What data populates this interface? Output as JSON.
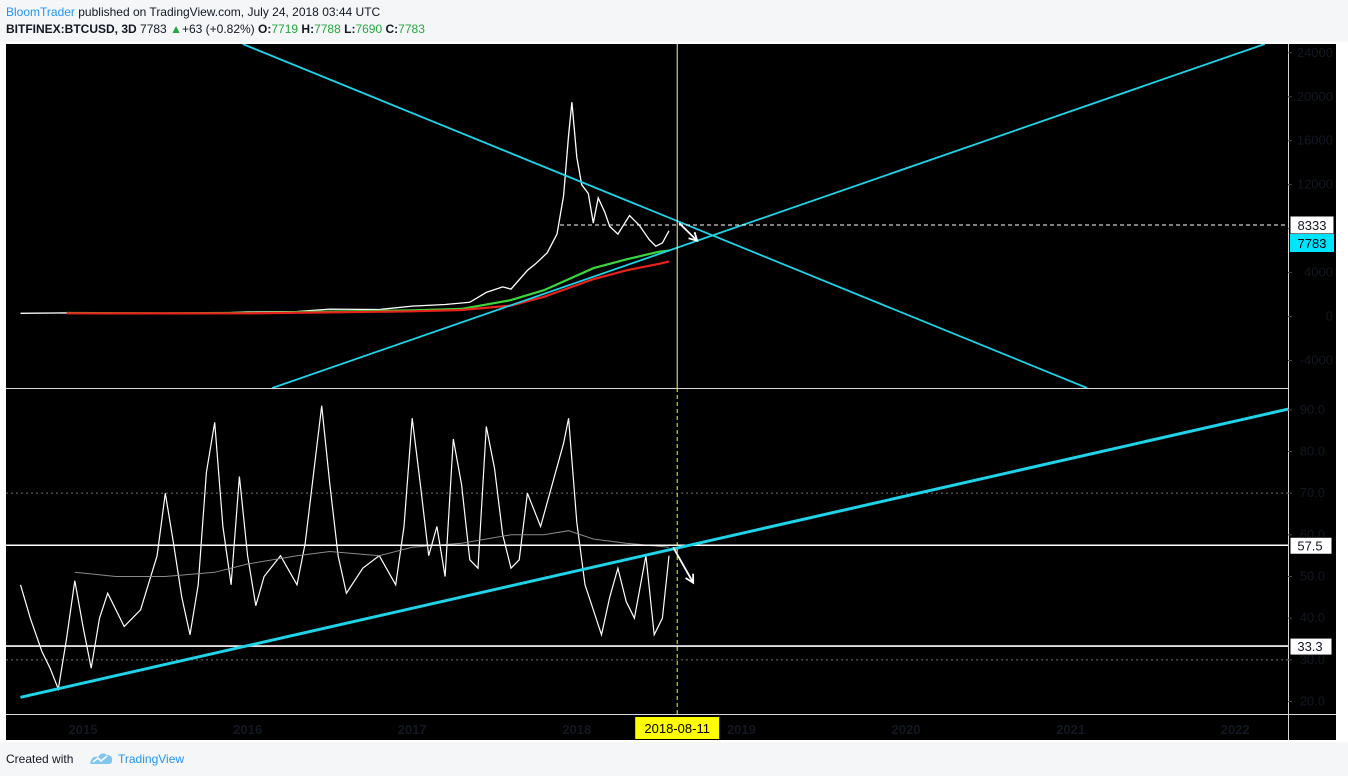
{
  "header": {
    "author": "BloomTrader",
    "published_text": " published on TradingView.com, July 24, 2018 03:44 UTC",
    "symbol": "BITFINEX:BTCUSD, 3D",
    "last": "7783",
    "change_arrow": "▲",
    "change": "+63 (+0.82%)",
    "o_label": "O:",
    "o_value": "7719",
    "h_label": "H:",
    "h_value": "7788",
    "l_label": "L:",
    "l_value": "7690",
    "c_label": "C:",
    "c_value": "7783"
  },
  "footer": {
    "created_with": "Created with",
    "brand": "TradingView"
  },
  "colors": {
    "background": "#000000",
    "trendline": "#1fd3e8",
    "price": "#ffffff",
    "ma_fast": "#3cd63c",
    "ma_slow": "#e8231c",
    "crosshair": "#f5f5a0",
    "date_badge": "#ffff00",
    "price_badge": "#00e5ff"
  },
  "chart_data": [
    {
      "type": "line",
      "panel": "price",
      "y_ticks": [
        "24000",
        "20000",
        "16000",
        "12000",
        "8000",
        "4000",
        "0",
        "-4000"
      ],
      "ylim": [
        -6500,
        24800
      ],
      "series": [
        {
          "color": "#ffffff",
          "points": [
            [
              2014.62,
              300
            ],
            [
              2014.9,
              330
            ],
            [
              2015.2,
              260
            ],
            [
              2015.5,
              270
            ],
            [
              2015.8,
              300
            ],
            [
              2016.0,
              420
            ],
            [
              2016.3,
              460
            ],
            [
              2016.5,
              680
            ],
            [
              2016.8,
              640
            ],
            [
              2017.0,
              950
            ],
            [
              2017.2,
              1100
            ],
            [
              2017.35,
              1300
            ],
            [
              2017.45,
              2200
            ],
            [
              2017.55,
              2700
            ],
            [
              2017.6,
              2500
            ],
            [
              2017.7,
              4200
            ],
            [
              2017.75,
              4800
            ],
            [
              2017.82,
              5800
            ],
            [
              2017.88,
              7500
            ],
            [
              2017.92,
              11000
            ],
            [
              2017.95,
              16500
            ],
            [
              2017.97,
              19500
            ],
            [
              2018.0,
              14500
            ],
            [
              2018.03,
              12000
            ],
            [
              2018.07,
              11200
            ],
            [
              2018.1,
              8500
            ],
            [
              2018.13,
              10800
            ],
            [
              2018.17,
              9500
            ],
            [
              2018.2,
              8200
            ],
            [
              2018.25,
              7500
            ],
            [
              2018.32,
              9200
            ],
            [
              2018.38,
              8300
            ],
            [
              2018.44,
              7000
            ],
            [
              2018.48,
              6400
            ],
            [
              2018.52,
              6700
            ],
            [
              2018.56,
              7800
            ]
          ]
        },
        {
          "color": "#3cd63c",
          "points": [
            [
              2014.9,
              320
            ],
            [
              2015.5,
              300
            ],
            [
              2016.0,
              330
            ],
            [
              2016.5,
              450
            ],
            [
              2017.0,
              560
            ],
            [
              2017.3,
              700
            ],
            [
              2017.6,
              1500
            ],
            [
              2017.8,
              2400
            ],
            [
              2017.95,
              3400
            ],
            [
              2018.1,
              4400
            ],
            [
              2018.3,
              5200
            ],
            [
              2018.5,
              5900
            ],
            [
              2018.56,
              6000
            ]
          ]
        },
        {
          "color": "#e8231c",
          "points": [
            [
              2014.9,
              300
            ],
            [
              2015.5,
              290
            ],
            [
              2016.0,
              300
            ],
            [
              2016.5,
              380
            ],
            [
              2017.0,
              480
            ],
            [
              2017.3,
              600
            ],
            [
              2017.6,
              1000
            ],
            [
              2017.8,
              1800
            ],
            [
              2017.95,
              2600
            ],
            [
              2018.1,
              3400
            ],
            [
              2018.3,
              4200
            ],
            [
              2018.5,
              4800
            ],
            [
              2018.56,
              5000
            ]
          ]
        }
      ],
      "trendlines": [
        {
          "from": [
            2015.97,
            24800
          ],
          "to": [
            2021.1,
            -6500
          ]
        },
        {
          "from": [
            2016.15,
            -6500
          ],
          "to": [
            2022.18,
            24800
          ]
        }
      ],
      "horizontal_level": 8333,
      "price_labels": [
        "8333",
        "7783"
      ]
    },
    {
      "type": "line",
      "panel": "rsi",
      "y_ticks": [
        "90.0",
        "80.0",
        "70.0",
        "60.0",
        "50.0",
        "40.0",
        "30.0",
        "20.0"
      ],
      "ylim": [
        17,
        95
      ],
      "series": [
        {
          "color": "#ffffff",
          "points": [
            [
              2014.62,
              48
            ],
            [
              2014.68,
              40
            ],
            [
              2014.75,
              32
            ],
            [
              2014.8,
              28
            ],
            [
              2014.85,
              23
            ],
            [
              2014.9,
              35
            ],
            [
              2014.95,
              49
            ],
            [
              2015.0,
              38
            ],
            [
              2015.05,
              28
            ],
            [
              2015.1,
              40
            ],
            [
              2015.15,
              46
            ],
            [
              2015.25,
              38
            ],
            [
              2015.35,
              42
            ],
            [
              2015.45,
              55
            ],
            [
              2015.5,
              70
            ],
            [
              2015.55,
              58
            ],
            [
              2015.6,
              45
            ],
            [
              2015.65,
              36
            ],
            [
              2015.7,
              48
            ],
            [
              2015.75,
              75
            ],
            [
              2015.8,
              87
            ],
            [
              2015.85,
              62
            ],
            [
              2015.9,
              48
            ],
            [
              2015.95,
              74
            ],
            [
              2016.0,
              55
            ],
            [
              2016.05,
              43
            ],
            [
              2016.1,
              50
            ],
            [
              2016.2,
              55
            ],
            [
              2016.3,
              48
            ],
            [
              2016.35,
              58
            ],
            [
              2016.45,
              91
            ],
            [
              2016.5,
              72
            ],
            [
              2016.55,
              55
            ],
            [
              2016.6,
              46
            ],
            [
              2016.7,
              52
            ],
            [
              2016.8,
              55
            ],
            [
              2016.9,
              48
            ],
            [
              2016.95,
              62
            ],
            [
              2017.0,
              88
            ],
            [
              2017.05,
              72
            ],
            [
              2017.1,
              55
            ],
            [
              2017.15,
              62
            ],
            [
              2017.2,
              50
            ],
            [
              2017.25,
              83
            ],
            [
              2017.3,
              72
            ],
            [
              2017.35,
              54
            ],
            [
              2017.4,
              52
            ],
            [
              2017.45,
              86
            ],
            [
              2017.5,
              76
            ],
            [
              2017.55,
              60
            ],
            [
              2017.6,
              52
            ],
            [
              2017.65,
              54
            ],
            [
              2017.7,
              70
            ],
            [
              2017.78,
              62
            ],
            [
              2017.85,
              72
            ],
            [
              2017.92,
              82
            ],
            [
              2017.95,
              88
            ],
            [
              2018.0,
              63
            ],
            [
              2018.05,
              48
            ],
            [
              2018.1,
              42
            ],
            [
              2018.15,
              36
            ],
            [
              2018.2,
              45
            ],
            [
              2018.25,
              52
            ],
            [
              2018.3,
              44
            ],
            [
              2018.35,
              40
            ],
            [
              2018.42,
              55
            ],
            [
              2018.47,
              36
            ],
            [
              2018.52,
              40
            ],
            [
              2018.56,
              55
            ]
          ]
        },
        {
          "color": "#8a8a8a",
          "points": [
            [
              2014.95,
              51
            ],
            [
              2015.2,
              50
            ],
            [
              2015.5,
              50
            ],
            [
              2015.8,
              51
            ],
            [
              2016.0,
              53
            ],
            [
              2016.3,
              55
            ],
            [
              2016.5,
              56
            ],
            [
              2016.8,
              55
            ],
            [
              2017.0,
              57
            ],
            [
              2017.3,
              58
            ],
            [
              2017.6,
              60
            ],
            [
              2017.8,
              60
            ],
            [
              2017.95,
              61
            ],
            [
              2018.1,
              59
            ],
            [
              2018.3,
              58
            ],
            [
              2018.56,
              57
            ]
          ]
        }
      ],
      "trendline": {
        "from": [
          2014.62,
          21
        ],
        "to": [
          2022.48,
          91.6
        ]
      },
      "levels": [
        57.5,
        33.3
      ],
      "level_labels": [
        "57.5",
        "33.3"
      ],
      "dashed_levels": [
        70,
        30
      ]
    }
  ],
  "x_axis": {
    "ticks": [
      {
        "label": "2015",
        "value": 2015
      },
      {
        "label": "2016",
        "value": 2016
      },
      {
        "label": "2017",
        "value": 2017
      },
      {
        "label": "2018",
        "value": 2018
      },
      {
        "label": "2019",
        "value": 2019
      },
      {
        "label": "2020",
        "value": 2020
      },
      {
        "label": "2021",
        "value": 2021
      },
      {
        "label": "2022",
        "value": 2022
      }
    ],
    "crosshair_date": "2018-08-11",
    "crosshair_value": 2018.61
  }
}
